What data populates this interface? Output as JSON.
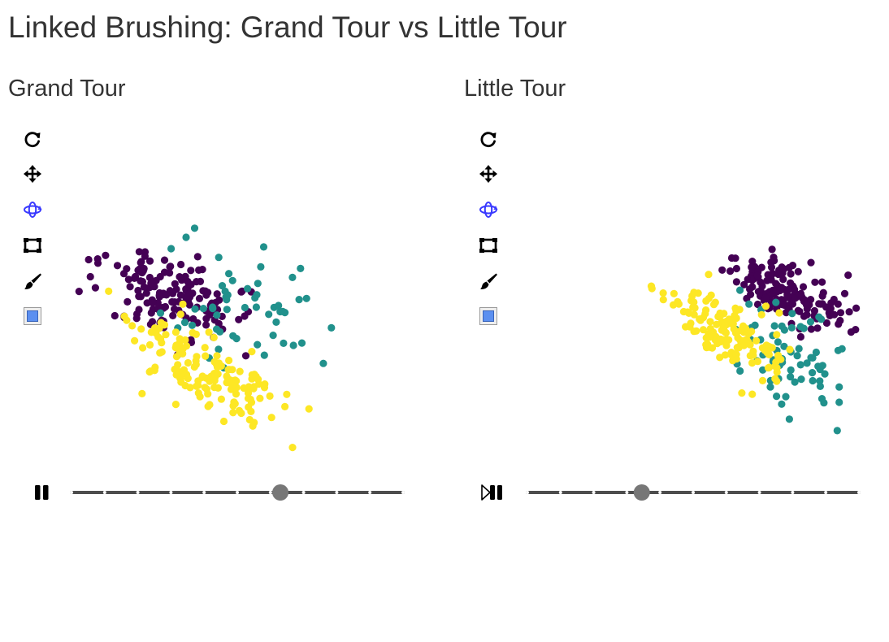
{
  "page": {
    "title": "Linked Brushing: Grand Tour vs Little Tour"
  },
  "colors": {
    "class_a": "#440154",
    "class_b": "#21918c",
    "class_c": "#fde725",
    "tool_active": "#3a3aff",
    "tool": "#000000",
    "track": "#4d4d4d",
    "thumb": "#777777",
    "swatch": "#5b8ff0"
  },
  "toolbar_icons": [
    "reset-icon",
    "move-icon",
    "rotate-icon",
    "select-box-icon",
    "brush-icon",
    "color-swatch-icon"
  ],
  "panels": [
    {
      "title": "Grand Tour",
      "playback": "pause",
      "slider": {
        "ticks": 11,
        "value": 0.63
      },
      "scatter": {
        "seed": 11,
        "clusters": [
          {
            "cls": "class_a",
            "n": 150,
            "mx": -130,
            "my": -205,
            "sx": 40,
            "sy": 28,
            "rho": 0.35
          },
          {
            "cls": "class_b",
            "n": 55,
            "mx": -35,
            "my": -180,
            "sx": 60,
            "sy": 40,
            "rho": 0.3
          },
          {
            "cls": "class_c",
            "n": 150,
            "mx": -85,
            "my": -110,
            "sx": 45,
            "sy": 32,
            "rho": 0.7
          }
        ]
      }
    },
    {
      "title": "Little Tour",
      "playback": "resume",
      "slider": {
        "ticks": 11,
        "value": 0.345
      },
      "scatter": {
        "seed": 29,
        "clusters": [
          {
            "cls": "class_a",
            "n": 150,
            "mx": 60,
            "my": -210,
            "sx": 35,
            "sy": 22,
            "rho": 0.55
          },
          {
            "cls": "class_b",
            "n": 70,
            "mx": 65,
            "my": -130,
            "sx": 40,
            "sy": 35,
            "rho": 0.5
          },
          {
            "cls": "class_c",
            "n": 150,
            "mx": -5,
            "my": -160,
            "sx": 35,
            "sy": 25,
            "rho": 0.6
          }
        ]
      }
    }
  ]
}
